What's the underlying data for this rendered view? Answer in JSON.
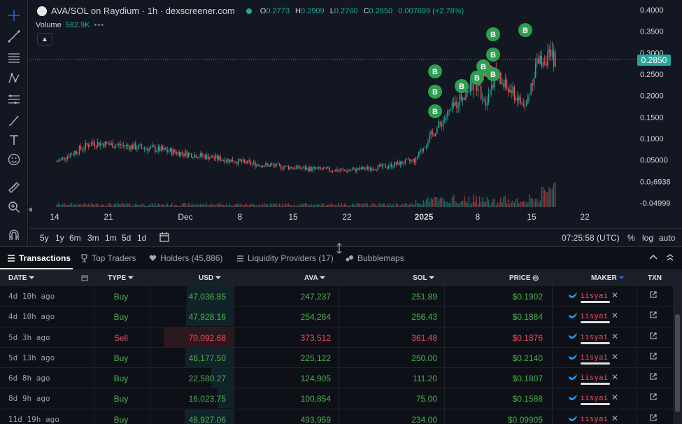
{
  "chart": {
    "pair_title": "AVA/SOL on Raydium · 1h · dexscreener.com",
    "ohlc": [
      {
        "k": "O",
        "v": "0.2773"
      },
      {
        "k": "H",
        "v": "0.2909"
      },
      {
        "k": "L",
        "v": "0.2760"
      },
      {
        "k": "C",
        "v": "0.2850"
      }
    ],
    "change": "0.007699 (+2.78%)",
    "volume_label": "Volume",
    "volume_value": "582.9K",
    "current_price": "0.2850",
    "price_axis": [
      "0.4000",
      "0.3500",
      "0.3000",
      "0.2500",
      "0.2000",
      "0.1500",
      "0.1000",
      "0.05000",
      "0.0₁6938",
      "-0.04999"
    ],
    "time_axis": [
      "14",
      "21",
      "Dec",
      "8",
      "15",
      "22",
      "2025",
      "8",
      "15",
      "22"
    ],
    "marker_label": "B",
    "colors": {
      "up": "#26a69a",
      "down": "#ef5350",
      "bg": "#131722",
      "marker": "#2e9e4f"
    }
  },
  "timeframes": [
    "5y",
    "1y",
    "6m",
    "3m",
    "1m",
    "5d",
    "1d"
  ],
  "status": {
    "clock": "07:25:58 (UTC)",
    "percent": "%",
    "log": "log",
    "auto": "auto"
  },
  "tabs": [
    {
      "label": "Transactions",
      "icon": "list-icon"
    },
    {
      "label": "Top Traders",
      "icon": "trophy-icon"
    },
    {
      "label": "Holders (45,886)",
      "icon": "heart-icon"
    },
    {
      "label": "Liquidity Providers (17)",
      "icon": "lines-icon"
    },
    {
      "label": "Bubblemaps",
      "icon": "bubbles-icon"
    }
  ],
  "table": {
    "headers": {
      "date": "DATE",
      "type": "TYPE",
      "usd": "USD",
      "ava": "AVA",
      "sol": "SOL",
      "price": "PRICE",
      "maker": "MAKER",
      "txn": "TXN"
    },
    "rows": [
      {
        "date": "4d 10h ago",
        "type": "Buy",
        "usd": "47,036.85",
        "ava": "247,237",
        "sol": "251.89",
        "price": "$0.1902",
        "maker": "iisyai"
      },
      {
        "date": "4d 10h ago",
        "type": "Buy",
        "usd": "47,928.16",
        "ava": "254,264",
        "sol": "256.43",
        "price": "$0.1884",
        "maker": "iisyai"
      },
      {
        "date": "5d 3h ago",
        "type": "Sell",
        "usd": "70,092.68",
        "ava": "373,512",
        "sol": "361.48",
        "price": "$0.1876",
        "maker": "iisyai"
      },
      {
        "date": "5d 13h ago",
        "type": "Buy",
        "usd": "48,177.50",
        "ava": "225,122",
        "sol": "250.00",
        "price": "$0.2140",
        "maker": "iisyai"
      },
      {
        "date": "6d 8h ago",
        "type": "Buy",
        "usd": "22,580.27",
        "ava": "124,905",
        "sol": "111.20",
        "price": "$0.1807",
        "maker": "iisyai"
      },
      {
        "date": "8d 9h ago",
        "type": "Buy",
        "usd": "16,023.75",
        "ava": "100,854",
        "sol": "75.00",
        "price": "$0.1588",
        "maker": "iisyai"
      },
      {
        "date": "11d 19h ago",
        "type": "Buy",
        "usd": "48,927.06",
        "ava": "493,959",
        "sol": "234.00",
        "price": "$0.09905",
        "maker": "iisyai"
      }
    ]
  }
}
